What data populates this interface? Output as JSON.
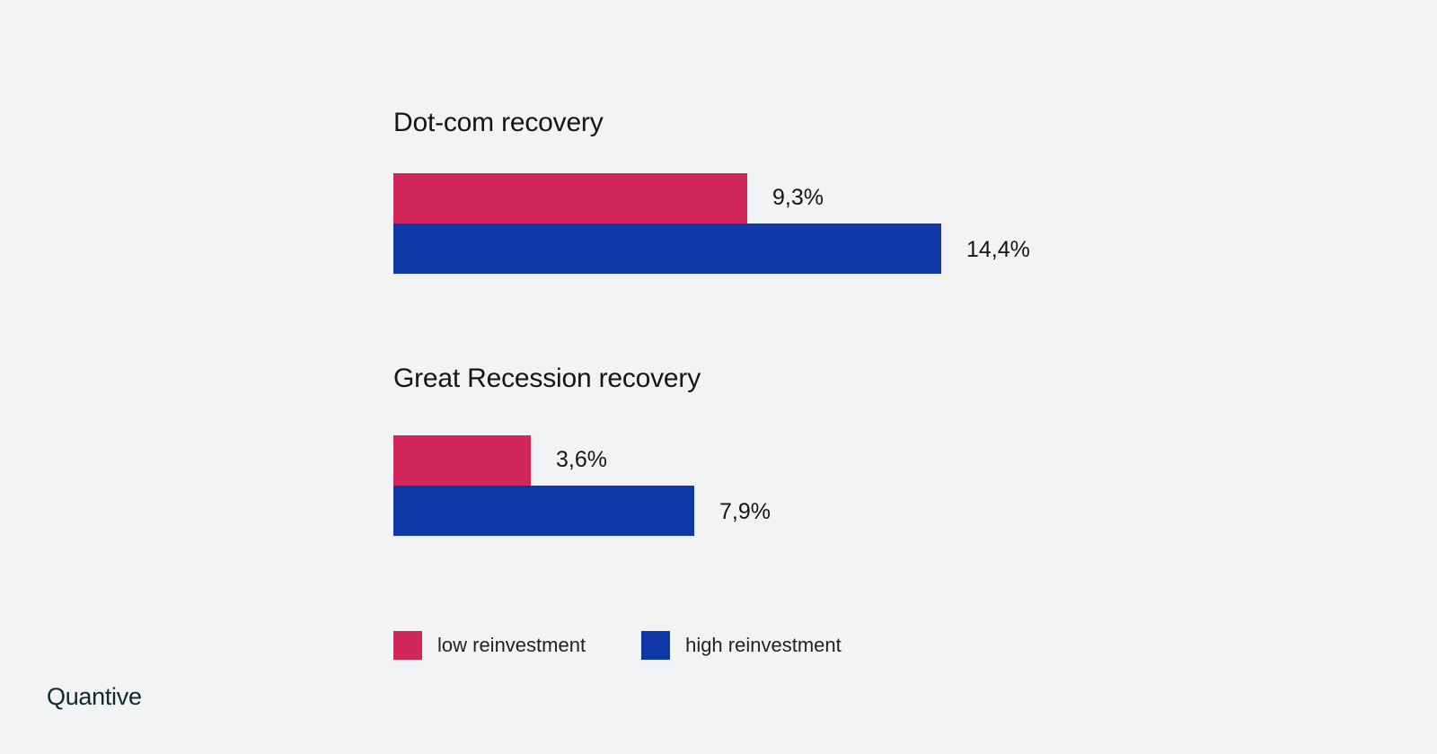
{
  "chart_data": {
    "type": "bar",
    "orientation": "horizontal",
    "groups": [
      {
        "title": "Dot-com recovery",
        "values": [
          {
            "series": "low reinvestment",
            "value": 9.3,
            "label": "9,3%"
          },
          {
            "series": "high reinvestment",
            "value": 14.4,
            "label": "14,4%"
          }
        ]
      },
      {
        "title": "Great Recession recovery",
        "values": [
          {
            "series": "low reinvestment",
            "value": 3.6,
            "label": "3,6%"
          },
          {
            "series": "high reinvestment",
            "value": 7.9,
            "label": "7,9%"
          }
        ]
      }
    ],
    "series": [
      {
        "name": "low reinvestment",
        "color": "#d1275b"
      },
      {
        "name": "high reinvestment",
        "color": "#0f38a6"
      }
    ],
    "xlim": [
      0,
      14.4
    ],
    "grid": false,
    "legend_position": "bottom-left"
  },
  "logo": {
    "text": "Quantive"
  }
}
